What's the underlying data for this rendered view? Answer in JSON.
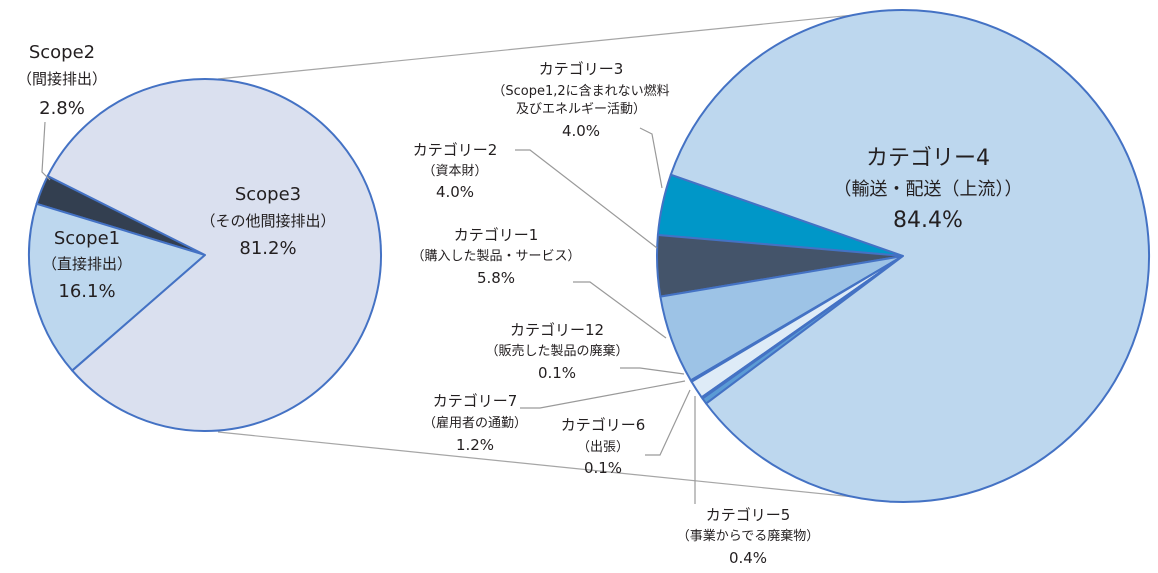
{
  "chart_data": [
    {
      "type": "pie",
      "slices": [
        {
          "name": "Scope1",
          "sub": "（直接排出）",
          "value_label": "16.1%",
          "value": 16.1,
          "color": "#bdd7ee"
        },
        {
          "name": "Scope2",
          "sub": "（間接排出）",
          "value_label": "2.8%",
          "value": 2.8,
          "color": "#333f50"
        },
        {
          "name": "Scope3",
          "sub": "（その他間接排出）",
          "value_label": "81.2%",
          "value": 81.2,
          "color": "#dae0ef"
        }
      ]
    },
    {
      "type": "pie",
      "slices": [
        {
          "name": "カテゴリー4",
          "sub": "（輸送・配送（上流））",
          "value_label": "84.4%",
          "value": 84.4,
          "color": "#bdd7ee"
        },
        {
          "name": "カテゴリー3",
          "sub": "（Scope1,2に含まれない燃料",
          "sub2": "及びエネルギー活動）",
          "value_label": "4.0%",
          "value": 4.0,
          "color": "#0097c8"
        },
        {
          "name": "カテゴリー2",
          "sub": "（資本財）",
          "value_label": "4.0%",
          "value": 4.0,
          "color": "#44546a"
        },
        {
          "name": "カテゴリー1",
          "sub": "（購入した製品・サービス）",
          "value_label": "5.8%",
          "value": 5.8,
          "color": "#9dc3e6"
        },
        {
          "name": "カテゴリー12",
          "sub": "（販売した製品の廃棄）",
          "value_label": "0.1%",
          "value": 0.1,
          "color": "#dae0ef"
        },
        {
          "name": "カテゴリー7",
          "sub": "（雇用者の通勤）",
          "value_label": "1.2%",
          "value": 1.2,
          "color": "#deebf7"
        },
        {
          "name": "カテゴリー6",
          "sub": "（出張）",
          "value_label": "0.1%",
          "value": 0.1,
          "color": "#2f5597"
        },
        {
          "name": "カテゴリー5",
          "sub": "（事業からでる廃棄物）",
          "value_label": "0.4%",
          "value": 0.4,
          "color": "#5b9bd5"
        }
      ]
    }
  ]
}
